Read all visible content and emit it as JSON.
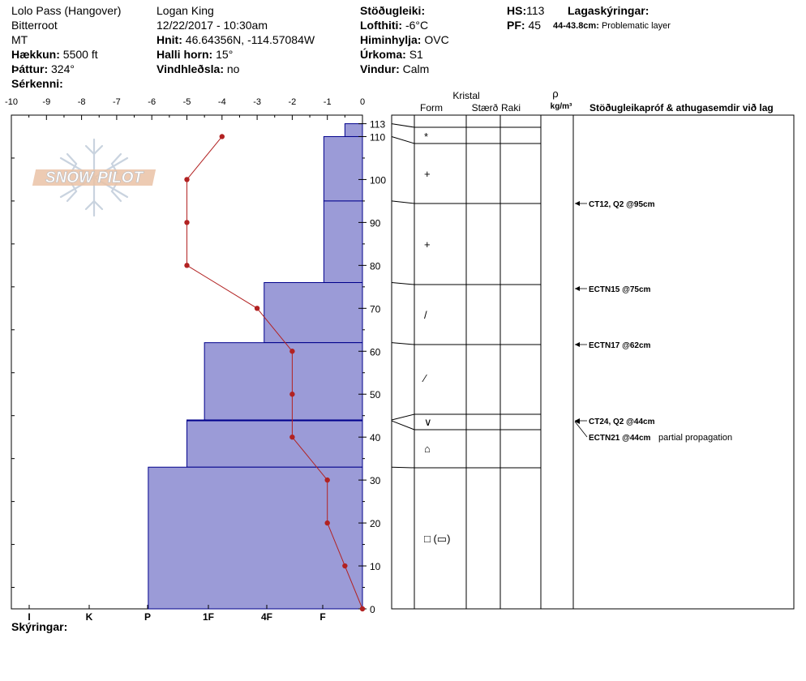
{
  "header": {
    "col1": {
      "location": "Lolo Pass (Hangover)",
      "range": "Bitterroot",
      "state": "MT",
      "elevation_label": "Hækkun:",
      "elevation": "5500 ft",
      "aspect_label": "Þáttur:",
      "aspect": "324°",
      "features_label": "Sérkenni:"
    },
    "col2": {
      "observer": "Logan King",
      "datetime": "12/22/2017 - 10:30am",
      "coords_label": "Hnit:",
      "coords": "46.64356N, -114.57084W",
      "slope_label": "Halli horn:",
      "slope": "15°",
      "wind_loading_label": "Vindhleðsla:",
      "wind_loading": "no"
    },
    "col3": {
      "stability_label": "Stöðugleiki:",
      "air_temp_label": "Lofthiti:",
      "air_temp": "-6°C",
      "sky_label": "Himinhylja:",
      "sky": "OVC",
      "precip_label": "Úrkoma:",
      "precip": "S1",
      "wind_label": "Vindur:",
      "wind": "Calm"
    },
    "col4": {
      "hs_label": "HS:",
      "hs": "113",
      "pf_label": "PF:",
      "pf": "45",
      "layer_notes_label": "Lagaskýringar:",
      "layer_note_depth": "44-43.8cm:",
      "layer_note_text": "Problematic layer"
    }
  },
  "logo_text": "SNOW PILOT",
  "footer": {
    "notes_label": "Skýringar:"
  },
  "columns": {
    "crystal": "Kristal",
    "form": "Form",
    "size": "Stærð",
    "moisture": "Raki",
    "rho": "ρ",
    "density_unit": "kg/m³",
    "tests": "Stöðugleikapróf & athugasemdir við lag"
  },
  "chart_data": {
    "type": "snow-profile",
    "temp_axis": {
      "ticks": [
        -10,
        -9,
        -8,
        -7,
        -6,
        -5,
        -4,
        -3,
        -2,
        -1,
        0
      ],
      "range": [
        -10,
        0
      ]
    },
    "hardness_axis": {
      "labels": [
        "I",
        "K",
        "P",
        "1F",
        "4F",
        "F"
      ]
    },
    "depth_axis": {
      "ticks": [
        0,
        10,
        20,
        30,
        40,
        50,
        60,
        70,
        80,
        90,
        100,
        110,
        113
      ],
      "range": [
        0,
        113
      ]
    },
    "temperature_profile": [
      {
        "height": 110,
        "temp": -4
      },
      {
        "height": 100,
        "temp": -5
      },
      {
        "height": 90,
        "temp": -5
      },
      {
        "height": 80,
        "temp": -5
      },
      {
        "height": 70,
        "temp": -3
      },
      {
        "height": 60,
        "temp": -2
      },
      {
        "height": 50,
        "temp": -2
      },
      {
        "height": 40,
        "temp": -2
      },
      {
        "height": 30,
        "temp": -1
      },
      {
        "height": 20,
        "temp": -1
      },
      {
        "height": 10,
        "temp": -0.5
      },
      {
        "height": 0,
        "temp": 0
      }
    ],
    "layers": [
      {
        "top": 113,
        "bottom": 110,
        "hardness_temp_equiv": -0.5,
        "form": "*"
      },
      {
        "top": 110,
        "bottom": 95,
        "hardness_temp_equiv": -1.1,
        "form": "+"
      },
      {
        "top": 95,
        "bottom": 76,
        "hardness_temp_equiv": -1.1,
        "form": "+"
      },
      {
        "top": 76,
        "bottom": 62,
        "hardness_temp_equiv": -2.8,
        "form": "/"
      },
      {
        "top": 62,
        "bottom": 44,
        "hardness_temp_equiv": -4.5,
        "form": "⁄"
      },
      {
        "top": 44,
        "bottom": 43.8,
        "hardness_temp_equiv": -5.0,
        "form": "∨"
      },
      {
        "top": 43.8,
        "bottom": 33,
        "hardness_temp_equiv": -5.0,
        "form": "⌂"
      },
      {
        "top": 33,
        "bottom": 0,
        "hardness_temp_equiv": -6.1,
        "form": "□ (▭)"
      }
    ],
    "tests": [
      {
        "height": 95,
        "text": "CT12, Q2 @95cm",
        "extra": ""
      },
      {
        "height": 75,
        "text": "ECTN15 @75cm",
        "extra": ""
      },
      {
        "height": 62,
        "text": "ECTN17 @62cm",
        "extra": ""
      },
      {
        "height": 44,
        "text": "CT24, Q2 @44cm",
        "extra": ""
      },
      {
        "height": 44,
        "text": "ECTN21 @44cm",
        "extra": "partial propagation"
      }
    ]
  },
  "colors": {
    "layer_fill": "#9b9bd7",
    "layer_edge": "#00008b",
    "temp_line": "#b22222"
  }
}
